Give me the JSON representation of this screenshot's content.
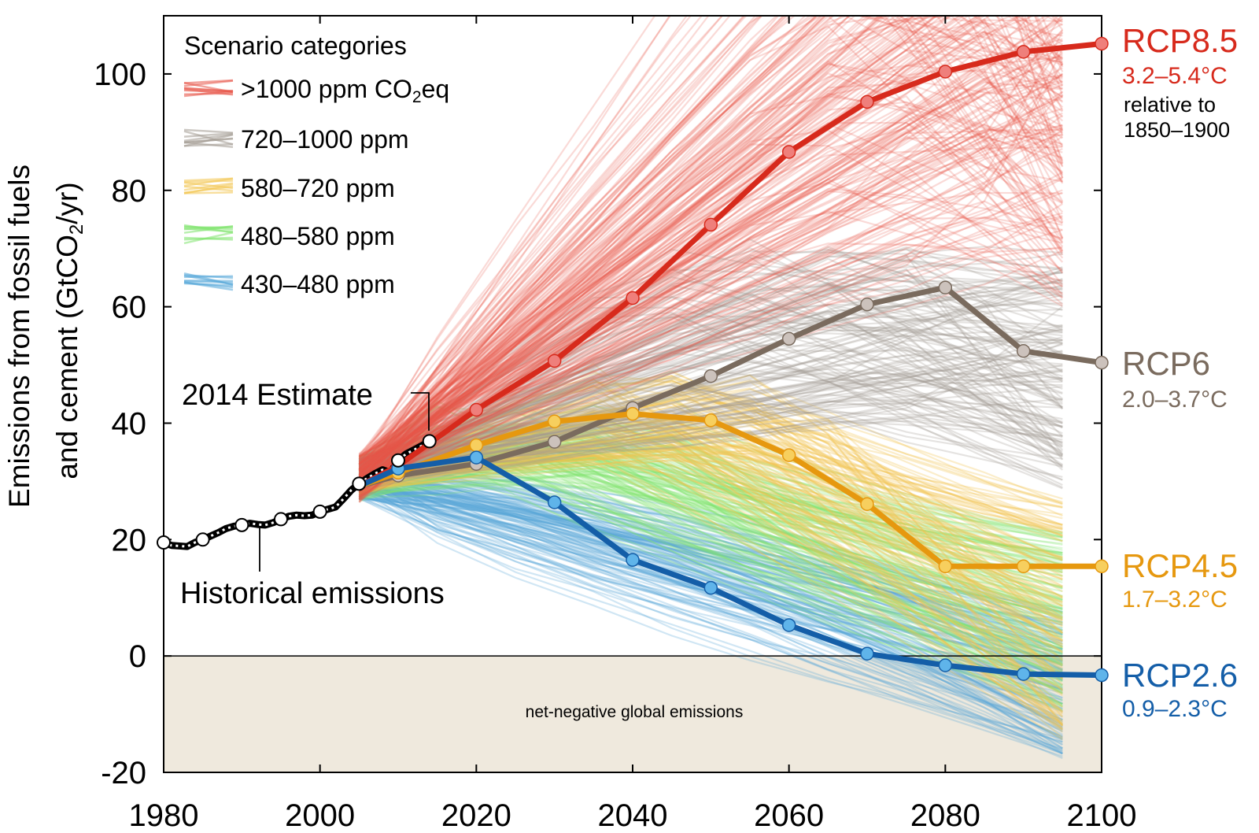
{
  "chart_data": {
    "type": "line",
    "ylabel_line1": "Emissions from fossil fuels",
    "ylabel_line2_prefix": "and cement (GtCO",
    "ylabel_line2_sub": "2",
    "ylabel_line2_suffix": "/yr)",
    "xlim": [
      1980,
      2100
    ],
    "ylim": [
      -20,
      110
    ],
    "x_ticks": [
      1980,
      2000,
      2020,
      2040,
      2060,
      2080,
      2100
    ],
    "y_ticks": [
      -20,
      0,
      20,
      40,
      60,
      80,
      100
    ],
    "legend": {
      "title": "Scenario categories",
      "entries": [
        {
          "label": ">1000 ppm CO",
          "sub": "2",
          "suffix": "eq",
          "color": "#e8574a"
        },
        {
          "label": "720–1000 ppm",
          "color": "#a39a92"
        },
        {
          "label": "580–720 ppm",
          "color": "#f2c44f"
        },
        {
          "label": "480–580 ppm",
          "color": "#7fe36d"
        },
        {
          "label": "430–480 ppm",
          "color": "#56a7d8"
        }
      ]
    },
    "historical": {
      "name": "Historical emissions",
      "x": [
        1980,
        1981,
        1982,
        1983,
        1984,
        1985,
        1986,
        1987,
        1988,
        1989,
        1990,
        1991,
        1992,
        1993,
        1994,
        1995,
        1996,
        1997,
        1998,
        1999,
        2000,
        2001,
        2002,
        2003,
        2004,
        2005,
        2006,
        2007,
        2008,
        2009,
        2010,
        2011,
        2012,
        2013,
        2014
      ],
      "y": [
        19.5,
        19.0,
        18.9,
        18.8,
        19.5,
        20.0,
        20.6,
        21.2,
        21.9,
        22.3,
        22.5,
        22.8,
        22.6,
        22.5,
        22.9,
        23.5,
        24.0,
        24.2,
        24.1,
        24.2,
        24.8,
        25.2,
        25.6,
        27.0,
        28.5,
        29.6,
        30.5,
        31.3,
        32.0,
        31.5,
        33.6,
        34.7,
        35.4,
        36.1,
        36.9
      ],
      "markers_x": [
        1980,
        1985,
        1990,
        1995,
        2000,
        2005,
        2010,
        2014
      ]
    },
    "annotation_estimate": "2014 Estimate",
    "annotation_historical": "Historical emissions",
    "negative_region_label": "net-negative global emissions",
    "series": [
      {
        "name": "RCP8.5",
        "range": "3.2–5.4°C",
        "note1": "relative to",
        "note2": "1850–1900",
        "color": "#d72a1c",
        "marker": "#ef7f7b",
        "x": [
          2005,
          2010,
          2020,
          2030,
          2040,
          2050,
          2060,
          2070,
          2080,
          2090,
          2100
        ],
        "y": [
          29.2,
          32.7,
          42.3,
          50.7,
          61.5,
          74.1,
          86.6,
          95.2,
          100.4,
          103.8,
          105.2
        ]
      },
      {
        "name": "RCP6",
        "range": "2.0–3.7°C",
        "color": "#7a6b5e",
        "marker": "#ccc2bc",
        "x": [
          2005,
          2010,
          2020,
          2030,
          2040,
          2050,
          2060,
          2070,
          2080,
          2090,
          2100
        ],
        "y": [
          29.2,
          31.0,
          33.0,
          36.8,
          42.6,
          48.1,
          54.5,
          60.4,
          63.3,
          52.4,
          50.4
        ]
      },
      {
        "name": "RCP4.5",
        "range": "1.7–3.2°C",
        "color": "#e6980f",
        "marker": "#f7cf5e",
        "x": [
          2005,
          2010,
          2020,
          2030,
          2040,
          2050,
          2060,
          2070,
          2080,
          2090,
          2100
        ],
        "y": [
          29.2,
          31.5,
          36.2,
          40.3,
          41.6,
          40.5,
          34.5,
          26.1,
          15.4,
          15.4,
          15.4
        ]
      },
      {
        "name": "RCP2.6",
        "range": "0.9–2.3°C",
        "color": "#145ea8",
        "marker": "#5fb4ea",
        "x": [
          2005,
          2010,
          2020,
          2030,
          2040,
          2050,
          2060,
          2070,
          2080,
          2090,
          2100
        ],
        "y": [
          29.2,
          32.2,
          34.1,
          26.4,
          16.5,
          11.7,
          5.3,
          0.4,
          -1.6,
          -3.1,
          -3.3
        ]
      }
    ]
  }
}
